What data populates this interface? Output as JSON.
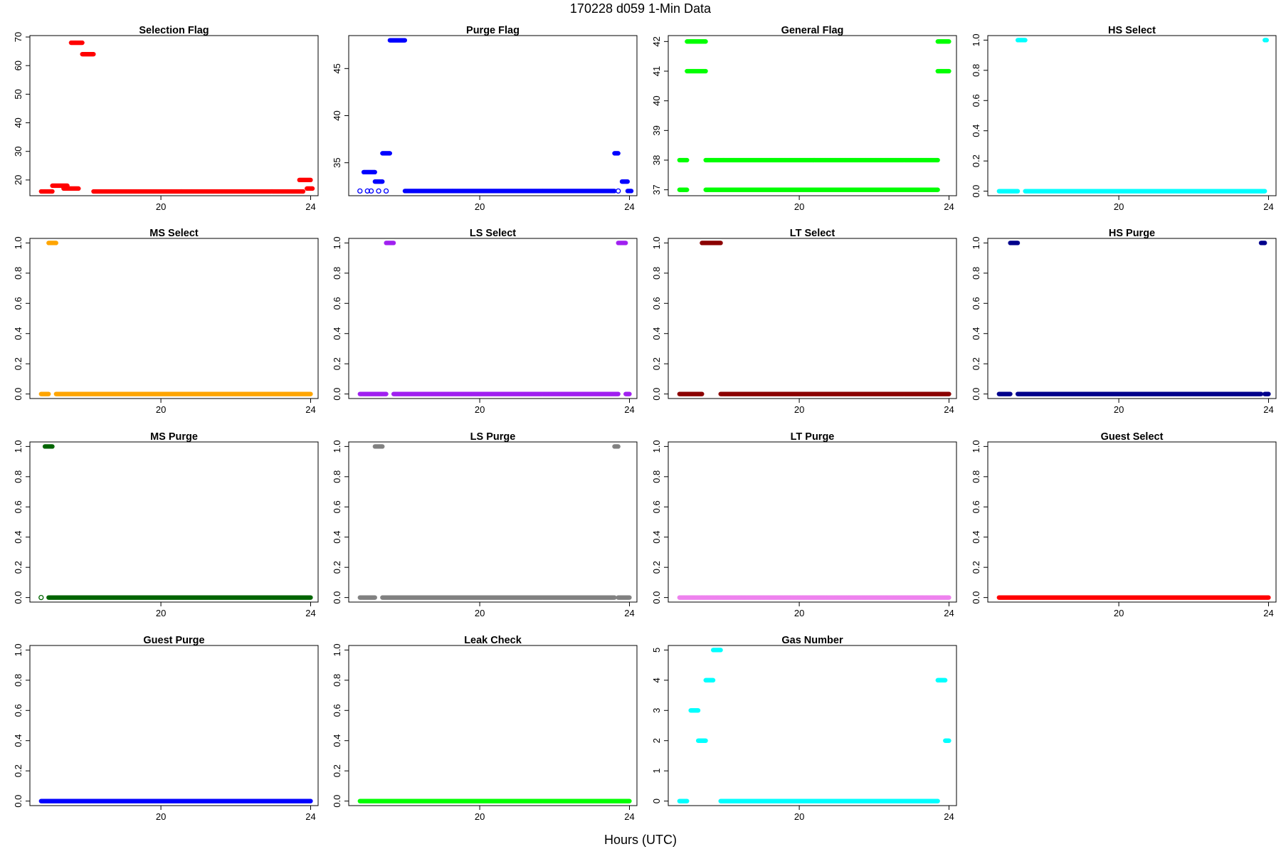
{
  "figure": {
    "title": "170228    d059    1-Min Data",
    "xlabel": "Hours (UTC)"
  },
  "chart_data": [
    {
      "type": "scatter",
      "title": "Selection Flag",
      "color": "#ff0000",
      "xlim": [
        16.5,
        24.2
      ],
      "xticks": [
        20,
        24
      ],
      "ylim": [
        14.5,
        70.5
      ],
      "yticks": [
        20,
        30,
        40,
        50,
        60,
        70
      ],
      "segments": [
        [
          16.8,
          17.1,
          16
        ],
        [
          17.1,
          17.5,
          18
        ],
        [
          17.4,
          17.8,
          17
        ],
        [
          17.6,
          17.9,
          68
        ],
        [
          17.9,
          18.2,
          64
        ],
        [
          18.2,
          23.8,
          16
        ],
        [
          23.7,
          24.0,
          20
        ],
        [
          23.9,
          24.05,
          17
        ]
      ]
    },
    {
      "type": "scatter",
      "title": "Purge Flag",
      "color": "#0000ff",
      "xlim": [
        16.5,
        24.2
      ],
      "xticks": [
        20,
        24
      ],
      "ylim": [
        31.5,
        48.5
      ],
      "yticks": [
        35,
        40,
        45
      ],
      "segments": [
        [
          16.9,
          17.2,
          34
        ],
        [
          17.2,
          17.4,
          33
        ],
        [
          17.4,
          17.6,
          36
        ],
        [
          17.6,
          18.0,
          48
        ],
        [
          18.0,
          23.6,
          32
        ],
        [
          23.6,
          23.7,
          36
        ],
        [
          23.8,
          23.95,
          33
        ],
        [
          23.95,
          24.05,
          32
        ]
      ],
      "hollow": [
        [
          16.8,
          32
        ],
        [
          17.0,
          32
        ],
        [
          17.1,
          32
        ],
        [
          17.3,
          32
        ],
        [
          17.5,
          32
        ],
        [
          23.7,
          32
        ]
      ]
    },
    {
      "type": "scatter",
      "title": "General Flag",
      "color": "#00ff00",
      "xlim": [
        16.5,
        24.2
      ],
      "xticks": [
        20,
        24
      ],
      "ylim": [
        36.8,
        42.2
      ],
      "yticks": [
        37,
        38,
        39,
        40,
        41,
        42
      ],
      "segments": [
        [
          16.8,
          17.0,
          38
        ],
        [
          16.8,
          17.0,
          37
        ],
        [
          17.0,
          17.5,
          42
        ],
        [
          17.0,
          17.5,
          41
        ],
        [
          17.5,
          23.7,
          38
        ],
        [
          17.5,
          23.7,
          37
        ],
        [
          23.7,
          24.0,
          42
        ],
        [
          23.7,
          24.0,
          41
        ]
      ]
    },
    {
      "type": "scatter",
      "title": "HS Select",
      "color": "#00ffff",
      "xlim": [
        16.5,
        24.2
      ],
      "xticks": [
        20,
        24
      ],
      "ylim": [
        -0.03,
        1.03
      ],
      "yticks": [
        0.0,
        0.2,
        0.4,
        0.6,
        0.8,
        1.0
      ],
      "segments": [
        [
          16.8,
          17.3,
          0
        ],
        [
          17.3,
          17.5,
          1
        ],
        [
          17.5,
          23.9,
          0
        ],
        [
          23.9,
          23.95,
          1
        ]
      ]
    },
    {
      "type": "scatter",
      "title": "MS Select",
      "color": "#ffa500",
      "xlim": [
        16.5,
        24.2
      ],
      "xticks": [
        20,
        24
      ],
      "ylim": [
        -0.03,
        1.03
      ],
      "yticks": [
        0.0,
        0.2,
        0.4,
        0.6,
        0.8,
        1.0
      ],
      "segments": [
        [
          16.8,
          17.0,
          0
        ],
        [
          17.0,
          17.2,
          1
        ],
        [
          17.2,
          24.0,
          0
        ]
      ]
    },
    {
      "type": "scatter",
      "title": "LS Select",
      "color": "#a020f0",
      "xlim": [
        16.5,
        24.2
      ],
      "xticks": [
        20,
        24
      ],
      "ylim": [
        -0.03,
        1.03
      ],
      "yticks": [
        0.0,
        0.2,
        0.4,
        0.6,
        0.8,
        1.0
      ],
      "segments": [
        [
          16.8,
          17.5,
          0
        ],
        [
          17.5,
          17.7,
          1
        ],
        [
          17.7,
          23.7,
          0
        ],
        [
          23.7,
          23.9,
          1
        ],
        [
          23.9,
          24.0,
          0
        ]
      ]
    },
    {
      "type": "scatter",
      "title": "LT Select",
      "color": "#8b0000",
      "xlim": [
        16.5,
        24.2
      ],
      "xticks": [
        20,
        24
      ],
      "ylim": [
        -0.03,
        1.03
      ],
      "yticks": [
        0.0,
        0.2,
        0.4,
        0.6,
        0.8,
        1.0
      ],
      "segments": [
        [
          16.8,
          17.4,
          0
        ],
        [
          17.4,
          17.9,
          1
        ],
        [
          17.9,
          24.0,
          0
        ]
      ]
    },
    {
      "type": "scatter",
      "title": "HS Purge",
      "color": "#00008b",
      "xlim": [
        16.5,
        24.2
      ],
      "xticks": [
        20,
        24
      ],
      "ylim": [
        -0.03,
        1.03
      ],
      "yticks": [
        0.0,
        0.2,
        0.4,
        0.6,
        0.8,
        1.0
      ],
      "segments": [
        [
          16.8,
          17.1,
          0
        ],
        [
          17.1,
          17.3,
          1
        ],
        [
          17.3,
          23.8,
          0
        ],
        [
          23.8,
          23.9,
          1
        ],
        [
          23.9,
          24.0,
          0
        ]
      ]
    },
    {
      "type": "scatter",
      "title": "MS Purge",
      "color": "#006400",
      "xlim": [
        16.5,
        24.2
      ],
      "xticks": [
        20,
        24
      ],
      "ylim": [
        -0.03,
        1.03
      ],
      "yticks": [
        0.0,
        0.2,
        0.4,
        0.6,
        0.8,
        1.0
      ],
      "segments": [
        [
          16.9,
          17.1,
          1
        ],
        [
          17.0,
          24.0,
          0
        ]
      ],
      "hollow": [
        [
          16.8,
          0
        ]
      ]
    },
    {
      "type": "scatter",
      "title": "LS Purge",
      "color": "#808080",
      "xlim": [
        16.5,
        24.2
      ],
      "xticks": [
        20,
        24
      ],
      "ylim": [
        -0.03,
        1.03
      ],
      "yticks": [
        0.0,
        0.2,
        0.4,
        0.6,
        0.8,
        1.0
      ],
      "segments": [
        [
          16.8,
          17.2,
          0
        ],
        [
          17.2,
          17.4,
          1
        ],
        [
          17.4,
          23.6,
          0
        ],
        [
          23.6,
          23.7,
          1
        ],
        [
          23.7,
          24.0,
          0
        ]
      ]
    },
    {
      "type": "scatter",
      "title": "LT Purge",
      "color": "#ee82ee",
      "xlim": [
        16.5,
        24.2
      ],
      "xticks": [
        20,
        24
      ],
      "ylim": [
        -0.03,
        1.03
      ],
      "yticks": [
        0.0,
        0.2,
        0.4,
        0.6,
        0.8,
        1.0
      ],
      "segments": [
        [
          16.8,
          24.0,
          0
        ]
      ]
    },
    {
      "type": "scatter",
      "title": "Guest Select",
      "color": "#ff0000",
      "xlim": [
        16.5,
        24.2
      ],
      "xticks": [
        20,
        24
      ],
      "ylim": [
        -0.03,
        1.03
      ],
      "yticks": [
        0.0,
        0.2,
        0.4,
        0.6,
        0.8,
        1.0
      ],
      "segments": [
        [
          16.8,
          24.0,
          0
        ]
      ]
    },
    {
      "type": "scatter",
      "title": "Guest Purge",
      "color": "#0000ff",
      "xlim": [
        16.5,
        24.2
      ],
      "xticks": [
        20,
        24
      ],
      "ylim": [
        -0.03,
        1.03
      ],
      "yticks": [
        0.0,
        0.2,
        0.4,
        0.6,
        0.8,
        1.0
      ],
      "segments": [
        [
          16.8,
          24.0,
          0
        ]
      ]
    },
    {
      "type": "scatter",
      "title": "Leak Check",
      "color": "#00ff00",
      "xlim": [
        16.5,
        24.2
      ],
      "xticks": [
        20,
        24
      ],
      "ylim": [
        -0.03,
        1.03
      ],
      "yticks": [
        0.0,
        0.2,
        0.4,
        0.6,
        0.8,
        1.0
      ],
      "segments": [
        [
          16.8,
          24.0,
          0
        ]
      ]
    },
    {
      "type": "scatter",
      "title": "Gas Number",
      "color": "#00ffff",
      "xlim": [
        16.5,
        24.2
      ],
      "xticks": [
        20,
        24
      ],
      "ylim": [
        -0.15,
        5.15
      ],
      "yticks": [
        0,
        1,
        2,
        3,
        4,
        5
      ],
      "segments": [
        [
          16.8,
          17.0,
          0
        ],
        [
          17.1,
          17.3,
          3
        ],
        [
          17.3,
          17.5,
          2
        ],
        [
          17.5,
          17.7,
          4
        ],
        [
          17.7,
          17.9,
          5
        ],
        [
          17.9,
          23.7,
          0
        ],
        [
          23.7,
          23.9,
          4
        ],
        [
          23.9,
          24.0,
          2
        ]
      ]
    }
  ]
}
